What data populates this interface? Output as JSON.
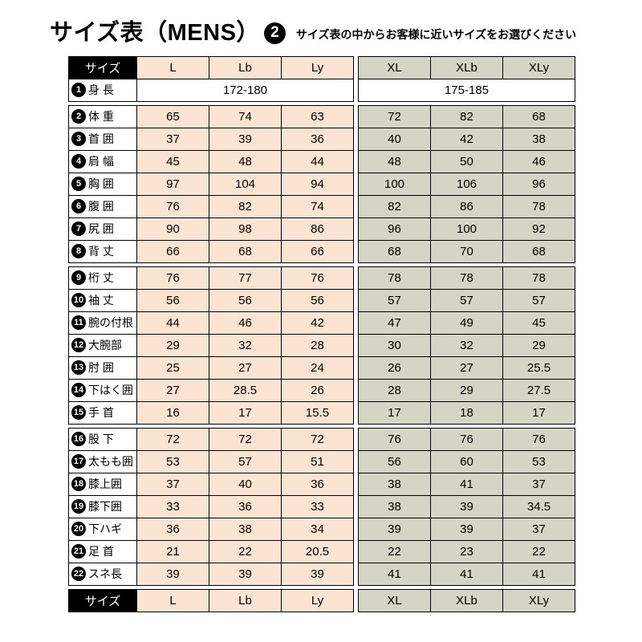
{
  "header": {
    "title": "サイズ表（MENS）",
    "badge": "2",
    "subtitle": "サイズ表の中からお客様に近いサイズをお選びください"
  },
  "colors": {
    "left_group_bg": "#fbe4d2",
    "right_group_bg": "#d5d5c5",
    "header_cell_bg": "#000000",
    "header_cell_text": "#ffffff"
  },
  "chart_data": {
    "type": "table",
    "title": "サイズ表（MENS）2",
    "header_label": "サイズ",
    "size_columns": [
      "L",
      "Lb",
      "Ly",
      "XL",
      "XLb",
      "XLy"
    ],
    "height_row": {
      "num": "1",
      "label": "身 長",
      "left": "172-180",
      "right": "175-185"
    },
    "row_groups": [
      [
        {
          "num": "2",
          "label": "体 重",
          "values": [
            65,
            74,
            63,
            72,
            82,
            68
          ]
        },
        {
          "num": "3",
          "label": "首 囲",
          "values": [
            37,
            39,
            36,
            40,
            42,
            38
          ]
        },
        {
          "num": "4",
          "label": "肩 幅",
          "values": [
            45,
            48,
            44,
            48,
            50,
            46
          ]
        },
        {
          "num": "5",
          "label": "胸 囲",
          "values": [
            97,
            104,
            94,
            100,
            106,
            96
          ]
        },
        {
          "num": "6",
          "label": "腹 囲",
          "values": [
            76,
            82,
            74,
            82,
            86,
            78
          ]
        },
        {
          "num": "7",
          "label": "尻 囲",
          "values": [
            90,
            98,
            86,
            96,
            100,
            92
          ]
        },
        {
          "num": "8",
          "label": "背 丈",
          "values": [
            66,
            68,
            66,
            68,
            70,
            68
          ]
        }
      ],
      [
        {
          "num": "9",
          "label": "桁 丈",
          "values": [
            76,
            77,
            76,
            78,
            78,
            78
          ]
        },
        {
          "num": "10",
          "label": "袖 丈",
          "values": [
            56,
            56,
            56,
            57,
            57,
            57
          ]
        },
        {
          "num": "11",
          "label": "腕の付根",
          "values": [
            44,
            46,
            42,
            47,
            49,
            45
          ]
        },
        {
          "num": "12",
          "label": "大腕部",
          "values": [
            29,
            32,
            28,
            30,
            32,
            29
          ]
        },
        {
          "num": "13",
          "label": "肘 囲",
          "values": [
            25,
            27,
            24,
            26,
            27,
            25.5
          ]
        },
        {
          "num": "14",
          "label": "下はく囲",
          "values": [
            27,
            28.5,
            26,
            28,
            29,
            27.5
          ]
        },
        {
          "num": "15",
          "label": "手 首",
          "values": [
            16,
            17,
            15.5,
            17,
            18,
            17
          ]
        }
      ],
      [
        {
          "num": "16",
          "label": "股 下",
          "values": [
            72,
            72,
            72,
            76,
            76,
            76
          ]
        },
        {
          "num": "17",
          "label": "太もも囲",
          "values": [
            53,
            57,
            51,
            56,
            60,
            53
          ]
        },
        {
          "num": "18",
          "label": "膝上囲",
          "values": [
            37,
            40,
            36,
            38,
            41,
            37
          ]
        },
        {
          "num": "19",
          "label": "膝下囲",
          "values": [
            33,
            36,
            33,
            38,
            39,
            34.5
          ]
        },
        {
          "num": "20",
          "label": "下ハギ",
          "values": [
            36,
            38,
            34,
            39,
            39,
            37
          ]
        },
        {
          "num": "21",
          "label": "足 首",
          "values": [
            21,
            22,
            20.5,
            22,
            23,
            22
          ]
        },
        {
          "num": "22",
          "label": "スネ長",
          "values": [
            39,
            39,
            39,
            41,
            41,
            41
          ]
        }
      ]
    ]
  }
}
